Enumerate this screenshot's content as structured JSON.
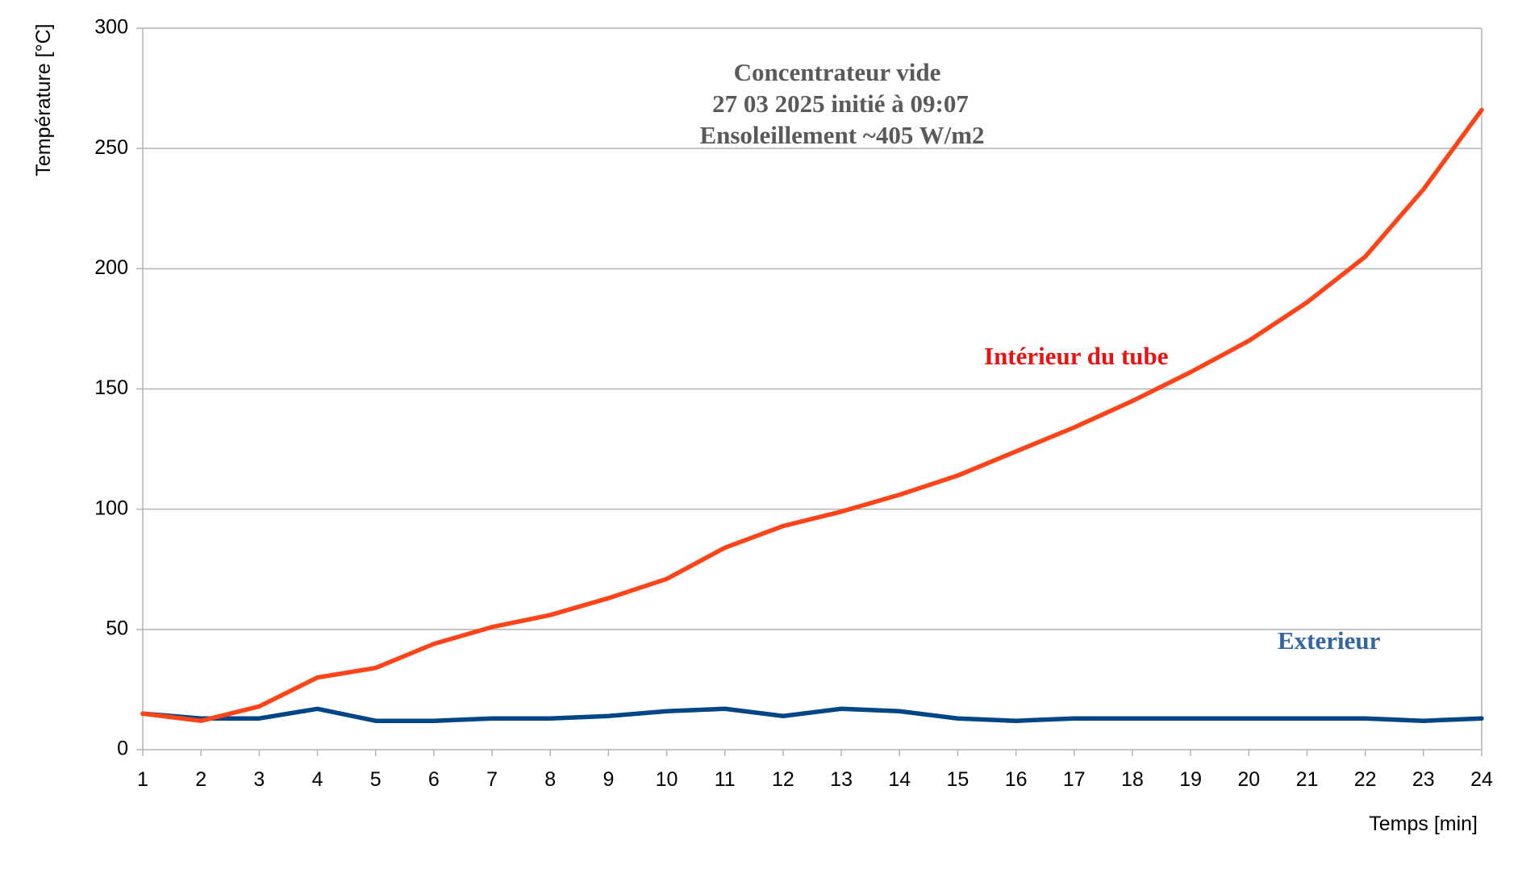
{
  "chart_data": {
    "type": "line",
    "title_lines": [
      "Concentrateur vide",
      "27 03 2025 initié à 09:07",
      "Ensoleillement ~405 W/m2"
    ],
    "xlabel": "Temps [min]",
    "ylabel": "Température [°C]",
    "x": [
      1,
      2,
      3,
      4,
      5,
      6,
      7,
      8,
      9,
      10,
      11,
      12,
      13,
      14,
      15,
      16,
      17,
      18,
      19,
      20,
      21,
      22,
      23,
      24
    ],
    "xlim": [
      1,
      24
    ],
    "ylim": [
      0,
      300
    ],
    "yticks": [
      0,
      50,
      100,
      150,
      200,
      250,
      300
    ],
    "grid": true,
    "series": [
      {
        "name": "Intérieur du tube",
        "color": "#ff4419",
        "label_color": "#ee1111",
        "values": [
          15,
          12,
          18,
          30,
          34,
          44,
          51,
          56,
          63,
          71,
          84,
          93,
          99,
          106,
          114,
          124,
          134,
          145,
          157,
          170,
          186,
          205,
          233,
          266
        ]
      },
      {
        "name": "Exterieur",
        "color": "#004586",
        "label_color": "#3465a4",
        "values": [
          15,
          13,
          13,
          17,
          12,
          12,
          13,
          13,
          14,
          16,
          17,
          14,
          17,
          16,
          13,
          12,
          13,
          13,
          13,
          13,
          13,
          13,
          12,
          13
        ]
      }
    ]
  }
}
